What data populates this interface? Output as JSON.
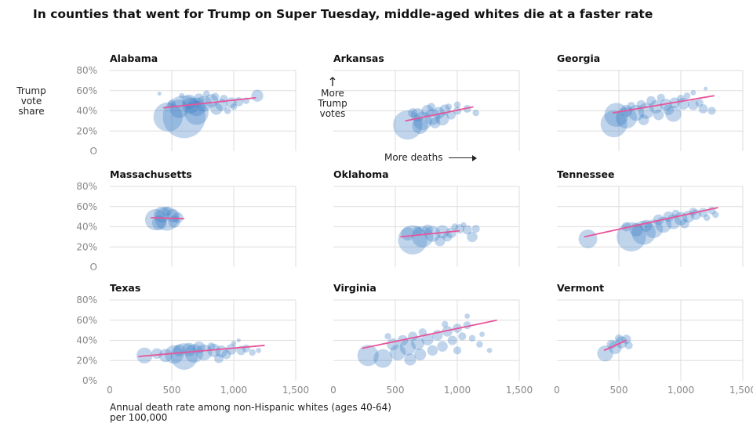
{
  "title": "In counties that went for Trump on Super Tuesday, middle-aged whites die at a faster rate",
  "ylabel_lines": [
    "Trump",
    "vote",
    "share"
  ],
  "xlabel_lines": [
    "Annual death rate among non-Hispanic whites (ages 40-64)",
    "per 100,000"
  ],
  "annotations": {
    "more_trump_votes": [
      "More",
      "Trump",
      "votes"
    ],
    "more_deaths": "More deaths",
    "arrow_up": "↑"
  },
  "colors": {
    "bubble": "#3f7fc4",
    "trend": "#e8559a",
    "grid": "#dddddd"
  },
  "chart_data": [
    {
      "type": "scatter",
      "title": "Alabama",
      "xlim": [
        0,
        1500
      ],
      "ylim": [
        0,
        80
      ],
      "y_ticks": [
        "O",
        "20%",
        "40%",
        "60%",
        "80%"
      ],
      "x_ticks": [],
      "trend": [
        [
          430,
          43
        ],
        [
          1180,
          53
        ]
      ],
      "points": [
        [
          470,
          34,
          22
        ],
        [
          600,
          34,
          32
        ],
        [
          700,
          38,
          18
        ],
        [
          560,
          42,
          14
        ],
        [
          650,
          45,
          12
        ],
        [
          760,
          47,
          12
        ],
        [
          820,
          50,
          10
        ],
        [
          900,
          46,
          9
        ],
        [
          980,
          48,
          8
        ],
        [
          860,
          42,
          9
        ],
        [
          720,
          52,
          8
        ],
        [
          1040,
          49,
          7
        ],
        [
          1190,
          55,
          9
        ],
        [
          500,
          47,
          6
        ],
        [
          780,
          57,
          5
        ],
        [
          640,
          49,
          11
        ],
        [
          920,
          52,
          6
        ],
        [
          700,
          44,
          14
        ],
        [
          1000,
          44,
          5
        ],
        [
          580,
          55,
          4
        ],
        [
          850,
          54,
          6
        ],
        [
          400,
          57,
          3
        ],
        [
          950,
          40,
          5
        ],
        [
          1100,
          50,
          5
        ]
      ]
    },
    {
      "type": "scatter",
      "title": "Arkansas",
      "xlim": [
        0,
        1500
      ],
      "ylim": [
        0,
        80
      ],
      "y_ticks": [],
      "x_ticks": [],
      "trend": [
        [
          580,
          30
        ],
        [
          1130,
          44
        ]
      ],
      "points": [
        [
          600,
          26,
          22
        ],
        [
          720,
          30,
          14
        ],
        [
          800,
          34,
          12
        ],
        [
          680,
          36,
          10
        ],
        [
          850,
          38,
          9
        ],
        [
          900,
          41,
          8
        ],
        [
          760,
          40,
          9
        ],
        [
          950,
          36,
          7
        ],
        [
          1000,
          40,
          6
        ],
        [
          1080,
          42,
          6
        ],
        [
          640,
          38,
          7
        ],
        [
          880,
          32,
          10
        ],
        [
          1150,
          38,
          5
        ],
        [
          1000,
          46,
          5
        ],
        [
          790,
          44,
          6
        ],
        [
          700,
          25,
          12
        ],
        [
          930,
          44,
          5
        ],
        [
          820,
          28,
          8
        ]
      ]
    },
    {
      "type": "scatter",
      "title": "Georgia",
      "xlim": [
        0,
        1500
      ],
      "ylim": [
        0,
        80
      ],
      "y_ticks": [],
      "x_ticks": [],
      "trend": [
        [
          450,
          38
        ],
        [
          1270,
          55
        ]
      ],
      "points": [
        [
          460,
          27,
          20
        ],
        [
          560,
          33,
          16
        ],
        [
          480,
          36,
          18
        ],
        [
          640,
          38,
          12
        ],
        [
          720,
          40,
          12
        ],
        [
          800,
          44,
          10
        ],
        [
          880,
          46,
          9
        ],
        [
          950,
          48,
          8
        ],
        [
          1020,
          47,
          9
        ],
        [
          1100,
          46,
          8
        ],
        [
          1180,
          42,
          7
        ],
        [
          760,
          50,
          7
        ],
        [
          840,
          53,
          6
        ],
        [
          900,
          41,
          8
        ],
        [
          1000,
          52,
          6
        ],
        [
          600,
          45,
          6
        ],
        [
          680,
          46,
          7
        ],
        [
          1150,
          48,
          6
        ],
        [
          1250,
          40,
          6
        ],
        [
          940,
          37,
          12
        ],
        [
          1050,
          55,
          5
        ],
        [
          820,
          36,
          8
        ],
        [
          560,
          40,
          9
        ],
        [
          1100,
          58,
          4
        ],
        [
          700,
          31,
          8
        ],
        [
          1200,
          62,
          3
        ]
      ]
    },
    {
      "type": "scatter",
      "title": "Massachusetts",
      "xlim": [
        0,
        1500
      ],
      "ylim": [
        0,
        80
      ],
      "y_ticks": [
        "O",
        "20%",
        "40%",
        "60%",
        "80%"
      ],
      "x_ticks": [],
      "trend": [
        [
          330,
          49
        ],
        [
          600,
          48
        ]
      ],
      "points": [
        [
          370,
          47,
          16
        ],
        [
          460,
          48,
          18
        ],
        [
          420,
          52,
          12
        ],
        [
          510,
          51,
          10
        ],
        [
          520,
          45,
          9
        ],
        [
          400,
          44,
          11
        ],
        [
          550,
          49,
          8
        ],
        [
          460,
          55,
          7
        ]
      ]
    },
    {
      "type": "scatter",
      "title": "Oklahoma",
      "xlim": [
        0,
        1500
      ],
      "ylim": [
        0,
        80
      ],
      "y_ticks": [],
      "x_ticks": [],
      "trend": [
        [
          540,
          30
        ],
        [
          1020,
          36
        ]
      ],
      "points": [
        [
          640,
          27,
          22
        ],
        [
          720,
          30,
          16
        ],
        [
          800,
          33,
          12
        ],
        [
          600,
          33,
          10
        ],
        [
          880,
          35,
          10
        ],
        [
          950,
          34,
          8
        ],
        [
          1020,
          38,
          7
        ],
        [
          1080,
          37,
          7
        ],
        [
          1150,
          38,
          6
        ],
        [
          1120,
          30,
          8
        ],
        [
          760,
          37,
          8
        ],
        [
          980,
          40,
          5
        ],
        [
          680,
          36,
          7
        ],
        [
          1050,
          42,
          4
        ],
        [
          860,
          26,
          8
        ],
        [
          920,
          30,
          7
        ]
      ]
    },
    {
      "type": "scatter",
      "title": "Tennessee",
      "xlim": [
        0,
        1500
      ],
      "ylim": [
        0,
        80
      ],
      "y_ticks": [],
      "x_ticks": [],
      "trend": [
        [
          220,
          30
        ],
        [
          1300,
          59
        ]
      ],
      "points": [
        [
          250,
          28,
          14
        ],
        [
          600,
          30,
          22
        ],
        [
          700,
          34,
          18
        ],
        [
          780,
          38,
          14
        ],
        [
          860,
          42,
          12
        ],
        [
          940,
          45,
          11
        ],
        [
          1000,
          48,
          10
        ],
        [
          1060,
          50,
          9
        ],
        [
          1120,
          52,
          8
        ],
        [
          1180,
          54,
          7
        ],
        [
          1250,
          56,
          6
        ],
        [
          820,
          47,
          8
        ],
        [
          900,
          50,
          8
        ],
        [
          720,
          41,
          9
        ],
        [
          1030,
          43,
          7
        ],
        [
          640,
          37,
          10
        ],
        [
          1100,
          55,
          6
        ],
        [
          960,
          53,
          6
        ],
        [
          1210,
          49,
          5
        ],
        [
          560,
          40,
          7
        ],
        [
          1280,
          52,
          5
        ]
      ]
    },
    {
      "type": "scatter",
      "title": "Texas",
      "xlim": [
        0,
        1500
      ],
      "ylim": [
        0,
        80
      ],
      "y_ticks": [
        "0%",
        "20%",
        "40%",
        "60%",
        "80%"
      ],
      "x_ticks": [
        "0",
        "500",
        "1,000",
        "1,500"
      ],
      "trend": [
        [
          230,
          24
        ],
        [
          1250,
          35
        ]
      ],
      "points": [
        [
          280,
          25,
          12
        ],
        [
          600,
          24,
          20
        ],
        [
          520,
          26,
          14
        ],
        [
          680,
          27,
          14
        ],
        [
          760,
          28,
          12
        ],
        [
          840,
          30,
          10
        ],
        [
          900,
          29,
          9
        ],
        [
          980,
          31,
          8
        ],
        [
          1060,
          30,
          7
        ],
        [
          640,
          31,
          10
        ],
        [
          720,
          33,
          9
        ],
        [
          450,
          25,
          10
        ],
        [
          1100,
          32,
          6
        ],
        [
          1150,
          28,
          5
        ],
        [
          560,
          30,
          9
        ],
        [
          820,
          34,
          6
        ],
        [
          1000,
          37,
          4
        ],
        [
          940,
          26,
          7
        ],
        [
          1200,
          30,
          4
        ],
        [
          380,
          27,
          8
        ],
        [
          880,
          22,
          7
        ],
        [
          1040,
          40,
          3
        ]
      ]
    },
    {
      "type": "scatter",
      "title": "Virginia",
      "xlim": [
        0,
        1500
      ],
      "ylim": [
        0,
        80
      ],
      "y_ticks": [],
      "x_ticks": [
        "0",
        "500",
        "1,000",
        "1,500"
      ],
      "trend": [
        [
          230,
          32
        ],
        [
          1320,
          60
        ]
      ],
      "points": [
        [
          280,
          25,
          16
        ],
        [
          400,
          22,
          14
        ],
        [
          520,
          28,
          12
        ],
        [
          600,
          33,
          12
        ],
        [
          680,
          37,
          10
        ],
        [
          760,
          41,
          9
        ],
        [
          840,
          45,
          8
        ],
        [
          920,
          49,
          8
        ],
        [
          1000,
          52,
          7
        ],
        [
          1080,
          55,
          6
        ],
        [
          480,
          36,
          9
        ],
        [
          560,
          40,
          8
        ],
        [
          640,
          44,
          7
        ],
        [
          720,
          48,
          6
        ],
        [
          800,
          30,
          8
        ],
        [
          880,
          34,
          8
        ],
        [
          960,
          40,
          7
        ],
        [
          1040,
          44,
          6
        ],
        [
          1120,
          42,
          5
        ],
        [
          1180,
          36,
          5
        ],
        [
          620,
          21,
          9
        ],
        [
          700,
          26,
          9
        ],
        [
          1000,
          30,
          6
        ],
        [
          1260,
          30,
          4
        ],
        [
          900,
          56,
          5
        ],
        [
          1080,
          64,
          4
        ],
        [
          440,
          44,
          5
        ],
        [
          1200,
          46,
          4
        ]
      ]
    },
    {
      "type": "scatter",
      "title": "Vermont",
      "xlim": [
        0,
        1500
      ],
      "ylim": [
        0,
        80
      ],
      "y_ticks": [],
      "x_ticks": [
        "0",
        "500",
        "1,000",
        "1,500"
      ],
      "trend": [
        [
          380,
          30
        ],
        [
          560,
          40
        ]
      ],
      "points": [
        [
          390,
          27,
          12
        ],
        [
          470,
          33,
          10
        ],
        [
          520,
          38,
          9
        ],
        [
          560,
          41,
          7
        ],
        [
          440,
          36,
          7
        ],
        [
          580,
          35,
          6
        ],
        [
          500,
          42,
          6
        ]
      ]
    }
  ]
}
